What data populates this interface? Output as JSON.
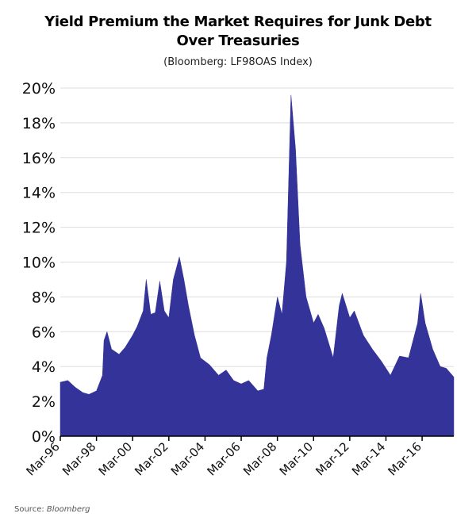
{
  "title_line1": "Yield Premium the Market Requires for Junk Debt",
  "title_line2": "Over Treasuries",
  "subtitle": "(Bloomberg: LF98OAS Index)",
  "source_label": "Source:",
  "source_name": "Bloomberg",
  "chart_data": {
    "type": "area",
    "title": "Yield Premium the Market Requires for Junk Debt Over Treasuries",
    "subtitle": "(Bloomberg: LF98OAS Index)",
    "xlabel": "",
    "ylabel": "",
    "ylim": [
      0,
      20
    ],
    "xlim": [
      "1996-03",
      "2017-12"
    ],
    "grid": true,
    "y_ticks": [
      "0%",
      "2%",
      "4%",
      "6%",
      "8%",
      "10%",
      "12%",
      "14%",
      "16%",
      "18%",
      "20%"
    ],
    "x_ticks": [
      "Mar-96",
      "Mar-98",
      "Mar-00",
      "Mar-02",
      "Mar-04",
      "Mar-06",
      "Mar-08",
      "Mar-10",
      "Mar-12",
      "Mar-14",
      "Mar-16"
    ],
    "fill_color": "#333399",
    "series": [
      {
        "x": [
          "1996-03",
          "1996-08",
          "1997-01",
          "1997-06",
          "1997-10",
          "1998-03",
          "1998-07",
          "1998-08",
          "1998-10",
          "1999-01",
          "1999-06",
          "1999-10",
          "2000-03",
          "2000-06",
          "2000-10",
          "2000-12",
          "2001-03",
          "2001-06",
          "2001-09",
          "2001-12",
          "2002-03",
          "2002-06",
          "2002-10",
          "2003-01",
          "2003-04",
          "2003-08",
          "2003-12",
          "2004-06",
          "2004-12",
          "2005-05",
          "2005-10",
          "2006-03",
          "2006-08",
          "2007-02",
          "2007-06",
          "2007-08",
          "2007-11",
          "2008-03",
          "2008-06",
          "2008-09",
          "2008-12",
          "2009-03",
          "2009-06",
          "2009-10",
          "2010-03",
          "2010-06",
          "2010-10",
          "2011-04",
          "2011-08",
          "2011-10",
          "2012-03",
          "2012-06",
          "2012-12",
          "2013-06",
          "2013-12",
          "2014-06",
          "2014-12",
          "2015-06",
          "2015-12",
          "2016-02",
          "2016-05",
          "2016-10",
          "2017-03",
          "2017-07",
          "2017-12"
        ],
        "values": [
          3.1,
          3.2,
          2.8,
          2.5,
          2.4,
          2.6,
          3.5,
          5.5,
          6.0,
          5.0,
          4.7,
          5.1,
          5.8,
          6.3,
          7.2,
          9.0,
          7.0,
          7.1,
          8.9,
          7.2,
          6.8,
          9.0,
          10.3,
          9.0,
          7.5,
          5.8,
          4.5,
          4.1,
          3.5,
          3.8,
          3.2,
          3.0,
          3.2,
          2.6,
          2.7,
          4.5,
          5.8,
          8.0,
          7.0,
          10.0,
          19.6,
          16.5,
          11.0,
          8.0,
          6.5,
          7.0,
          6.2,
          4.5,
          7.5,
          8.2,
          6.8,
          7.2,
          5.8,
          5.0,
          4.3,
          3.5,
          4.6,
          4.5,
          6.5,
          8.2,
          6.5,
          5.0,
          4.0,
          3.9,
          3.4
        ]
      }
    ]
  }
}
